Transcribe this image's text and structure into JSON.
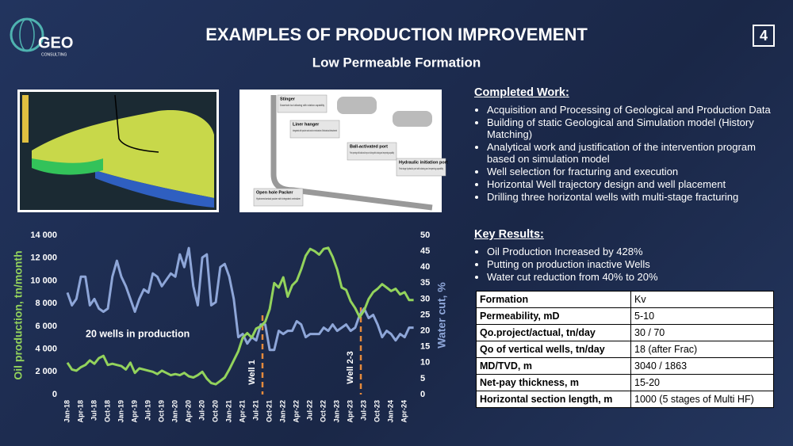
{
  "header": {
    "logo": "GEO",
    "logo_sub": "CONSULTING",
    "title": "EXAMPLES OF PRODUCTION IMPROVEMENT",
    "subtitle": "Low Permeable Formation",
    "page": "4"
  },
  "completion_diagram": {
    "callouts": [
      {
        "title": "Stinger",
        "text": "Downhole tool allowing with rotation capability"
      },
      {
        "title": "Liner hanger",
        "text": "Integrated with packer and anchor mechanism. Mechanical detachment"
      },
      {
        "title": "Ball-activated port",
        "text": "Port opening with balls and keys on tubing with closing and reopening capability"
      },
      {
        "title": "Hydraulic initiation port",
        "text": "First stage hydraulic port with closing and reopening capability"
      },
      {
        "title": "Open hole Packer",
        "text": "Hydromechanical packer with integrated centralizer"
      }
    ]
  },
  "completed_work": {
    "heading": "Completed Work:",
    "items": [
      "Acquisition and Processing of Geological and Production Data",
      "Building of static Geological and Simulation model (History Matching)",
      "Analytical work and justification of the intervention program based on simulation model",
      "Well selection for fracturing and execution",
      "Horizontal Well trajectory design and well placement",
      "Drilling three horizontal wells with multi-stage fracturing"
    ]
  },
  "key_results": {
    "heading": "Key Results:",
    "items": [
      "Oil Production Increased by 428%",
      "Putting on production inactive Wells",
      "Water cut reduction from 40% to 20%"
    ]
  },
  "table": {
    "rows": [
      [
        "Formation",
        "Kv"
      ],
      [
        "Permeability, mD",
        "5-10"
      ],
      [
        "Qo.project/actual, tn/day",
        "30 / 70"
      ],
      [
        "Qo of vertical wells, tn/day",
        "18 (after Frac)"
      ],
      [
        "MD/TVD, m",
        "3040 / 1863"
      ],
      [
        "Net-pay thickness, m",
        "15-20"
      ],
      [
        "Horizontal section length, m",
        "1000 (5 stages of Multi HF)"
      ]
    ]
  },
  "chart_data": {
    "type": "line",
    "ylabel": "Oil production, tn/month",
    "y2label": "Water cut, %",
    "categories": [
      "Jan-18",
      null,
      null,
      "Apr-18",
      null,
      null,
      "Jul-18",
      null,
      null,
      "Oct-18",
      null,
      null,
      "Jan-19",
      null,
      null,
      "Apr-19",
      null,
      null,
      "Jul-19",
      null,
      null,
      "Oct-19",
      null,
      null,
      "Jan-20",
      null,
      null,
      "Apr-20",
      null,
      null,
      "Jul-20",
      null,
      null,
      "Oct-20",
      null,
      null,
      "Jan-21",
      null,
      null,
      "Apr-21",
      null,
      null,
      "Jul-21",
      null,
      null,
      "Oct-21",
      null,
      null,
      "Jan-22",
      null,
      null,
      "Apr-22",
      null,
      null,
      "Jul-22",
      null,
      null,
      "Oct-22",
      null,
      null,
      "Jan-23",
      null,
      null,
      "Apr-23",
      null,
      null,
      "Jul-23",
      null,
      null,
      "Oct-23",
      null,
      null,
      "Jan-24",
      null,
      null,
      "Apr-24",
      null,
      null
    ],
    "series": [
      {
        "name": "Oil production",
        "color": "#93d35c",
        "values": [
          2800,
          2200,
          2100,
          2400,
          2600,
          3000,
          2700,
          3200,
          3400,
          2600,
          2700,
          2600,
          2500,
          2200,
          2800,
          1900,
          2300,
          2200,
          2100,
          2000,
          1800,
          2100,
          1900,
          1700,
          1800,
          1700,
          1900,
          1600,
          1500,
          1700,
          2000,
          1400,
          1000,
          900,
          1200,
          1500,
          2200,
          3000,
          3800,
          5000,
          5400,
          5000,
          5800,
          6000,
          6400,
          7500,
          9800,
          9400,
          10300,
          8600,
          9600,
          10000,
          11000,
          12200,
          12800,
          12600,
          12300,
          12800,
          12900,
          12100,
          11000,
          9400,
          9200,
          8200,
          7600,
          6800,
          7400,
          8400,
          9000,
          9300,
          9700,
          9400,
          9100,
          9300,
          8800,
          9000,
          8300,
          8300
        ]
      },
      {
        "name": "Water cut",
        "color": "#8ea6d8",
        "axis": "y2",
        "values": [
          32,
          28,
          30,
          37,
          37,
          28,
          30,
          27,
          26,
          27,
          37,
          42,
          37,
          34,
          30,
          26,
          30,
          33,
          32,
          38,
          37,
          34,
          36,
          38,
          37,
          44,
          40,
          46,
          34,
          28,
          43,
          44,
          28,
          29,
          40,
          41,
          37,
          30,
          18,
          19,
          16,
          18,
          17,
          22,
          22,
          14,
          14,
          20,
          19,
          20,
          20,
          23,
          22,
          18,
          19,
          19,
          19,
          21,
          20,
          22,
          20,
          21,
          22,
          20,
          21,
          25,
          27,
          24,
          25,
          22,
          18,
          20,
          19,
          17,
          19,
          18,
          21,
          21
        ]
      }
    ],
    "ylim": [
      0,
      14000
    ],
    "yticks": [
      0,
      {
        "value": 2000,
        "label": "2 000"
      },
      {
        "value": 4000,
        "label": "4 000"
      },
      {
        "value": 6000,
        "label": "6 000"
      },
      {
        "value": 8000,
        "label": "8 000"
      },
      {
        "value": 10000,
        "label": "10 000"
      },
      {
        "value": 12000,
        "label": "12 000"
      },
      {
        "value": 14000,
        "label": "14 000"
      }
    ],
    "y2lim": [
      0,
      50
    ],
    "y2ticks": [
      0,
      5,
      10,
      15,
      20,
      25,
      30,
      35,
      40,
      45,
      50
    ],
    "annotations": [
      {
        "text": "20 wells in production"
      },
      {
        "text": "Well 1"
      },
      {
        "text": "Well 2-3"
      }
    ]
  }
}
